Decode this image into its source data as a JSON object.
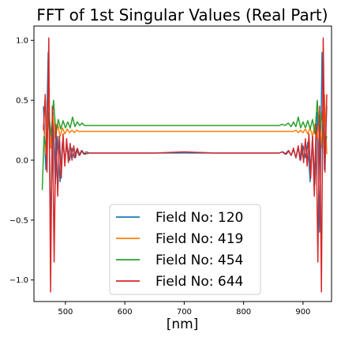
{
  "chart_data": {
    "type": "line",
    "title": "FFT of 1st Singular Values (Real Part)",
    "xlabel": "[nm]",
    "ylabel": "",
    "xlim": [
      447,
      948
    ],
    "ylim": [
      -1.18,
      1.12
    ],
    "x_ticks": [
      500,
      600,
      700,
      800,
      900
    ],
    "y_ticks": [
      -1.0,
      -0.5,
      0.0,
      0.5,
      1.0
    ],
    "x_tick_labels": [
      "500",
      "600",
      "700",
      "800",
      "900"
    ],
    "y_tick_labels": [
      "−1.0",
      "−0.5",
      "0.0",
      "0.5",
      "1.0"
    ],
    "grid": false,
    "legend_position": "lower-center",
    "series": [
      {
        "name": "Field No: 120",
        "color": "#1f77b4",
        "x": [
          463,
          467,
          471,
          475,
          479,
          483,
          487,
          491,
          495,
          499,
          503,
          507,
          511,
          515,
          519,
          523,
          527,
          531,
          535,
          540,
          550,
          560,
          600,
          650,
          700,
          750,
          800,
          850,
          860,
          865,
          870,
          875,
          880,
          884,
          888,
          892,
          896,
          900,
          904,
          908,
          912,
          916,
          920,
          924,
          928,
          932,
          936,
          940
        ],
        "values": [
          0.45,
          -0.08,
          0.9,
          -0.6,
          0.4,
          -0.2,
          0.2,
          -0.18,
          0.15,
          0.02,
          0.12,
          0.0,
          0.1,
          0.02,
          0.09,
          0.04,
          0.08,
          0.05,
          0.07,
          0.06,
          0.06,
          0.06,
          0.06,
          0.06,
          0.06,
          0.06,
          0.06,
          0.06,
          0.06,
          0.07,
          0.05,
          0.08,
          0.04,
          0.09,
          0.02,
          0.1,
          0.0,
          0.12,
          0.02,
          0.15,
          -0.18,
          0.2,
          -0.2,
          0.4,
          -0.6,
          0.9,
          -0.08,
          0.45
        ]
      },
      {
        "name": "Field No: 419",
        "color": "#ff7f0e",
        "x": [
          463,
          467,
          471,
          475,
          479,
          483,
          487,
          491,
          495,
          499,
          503,
          507,
          511,
          515,
          519,
          523,
          527,
          531,
          535,
          540,
          550,
          560,
          600,
          650,
          700,
          750,
          800,
          850,
          860,
          865,
          870,
          875,
          880,
          884,
          888,
          892,
          896,
          900,
          904,
          908,
          912,
          916,
          920,
          924,
          928,
          932,
          936,
          940
        ],
        "values": [
          0.3,
          0.05,
          0.55,
          0.1,
          0.38,
          0.18,
          0.3,
          0.2,
          0.27,
          0.22,
          0.26,
          0.23,
          0.25,
          0.23,
          0.25,
          0.24,
          0.24,
          0.24,
          0.24,
          0.24,
          0.24,
          0.24,
          0.24,
          0.24,
          0.24,
          0.24,
          0.24,
          0.24,
          0.24,
          0.24,
          0.24,
          0.24,
          0.24,
          0.24,
          0.25,
          0.23,
          0.25,
          0.23,
          0.26,
          0.22,
          0.27,
          0.2,
          0.3,
          0.18,
          0.38,
          0.1,
          0.55,
          0.05
        ]
      },
      {
        "name": "Field No: 454",
        "color": "#2ca02c",
        "x": [
          461,
          464,
          468,
          472,
          476,
          480,
          484,
          488,
          492,
          496,
          500,
          504,
          508,
          512,
          516,
          520,
          524,
          528,
          532,
          540,
          550,
          560,
          600,
          650,
          700,
          750,
          800,
          850,
          860,
          865,
          870,
          875,
          880,
          884,
          888,
          892,
          896,
          900,
          904,
          908,
          912,
          916,
          920,
          924,
          928,
          932,
          936,
          940
        ],
        "values": [
          -0.25,
          0.2,
          0.1,
          0.4,
          0.2,
          0.5,
          0.22,
          0.34,
          0.26,
          0.33,
          0.27,
          0.32,
          0.27,
          0.36,
          0.28,
          0.32,
          0.29,
          0.31,
          0.29,
          0.29,
          0.29,
          0.29,
          0.29,
          0.29,
          0.29,
          0.29,
          0.29,
          0.29,
          0.29,
          0.3,
          0.29,
          0.31,
          0.28,
          0.32,
          0.28,
          0.36,
          0.27,
          0.32,
          0.27,
          0.33,
          0.26,
          0.34,
          0.22,
          0.5,
          0.2,
          0.4,
          0.1,
          0.2
        ]
      },
      {
        "name": "Field No: 644",
        "color": "#d62728",
        "x": [
          463,
          466,
          469,
          472,
          475,
          478,
          481,
          484,
          487,
          490,
          493,
          496,
          499,
          502,
          505,
          508,
          511,
          514,
          517,
          520,
          524,
          528,
          532,
          540,
          550,
          560,
          600,
          650,
          700,
          750,
          800,
          850,
          860,
          866,
          872,
          876,
          880,
          884,
          888,
          892,
          895,
          898,
          901,
          904,
          907,
          910,
          913,
          916,
          919,
          922,
          925,
          928,
          931,
          934,
          937,
          940
        ],
        "values": [
          0.25,
          0.55,
          -0.1,
          1.02,
          -1.1,
          0.45,
          -0.85,
          0.3,
          -0.3,
          0.2,
          -0.15,
          0.22,
          -0.05,
          0.18,
          -0.02,
          0.14,
          0.0,
          0.12,
          0.02,
          0.1,
          0.04,
          0.08,
          0.05,
          0.06,
          0.06,
          0.06,
          0.06,
          0.06,
          0.07,
          0.06,
          0.06,
          0.06,
          0.06,
          0.07,
          0.05,
          0.08,
          0.04,
          0.1,
          0.02,
          0.12,
          0.0,
          0.14,
          -0.02,
          0.18,
          -0.05,
          0.22,
          -0.15,
          0.2,
          -0.3,
          0.3,
          -0.85,
          0.45,
          -1.1,
          1.02,
          -0.1,
          0.55
        ]
      }
    ]
  }
}
